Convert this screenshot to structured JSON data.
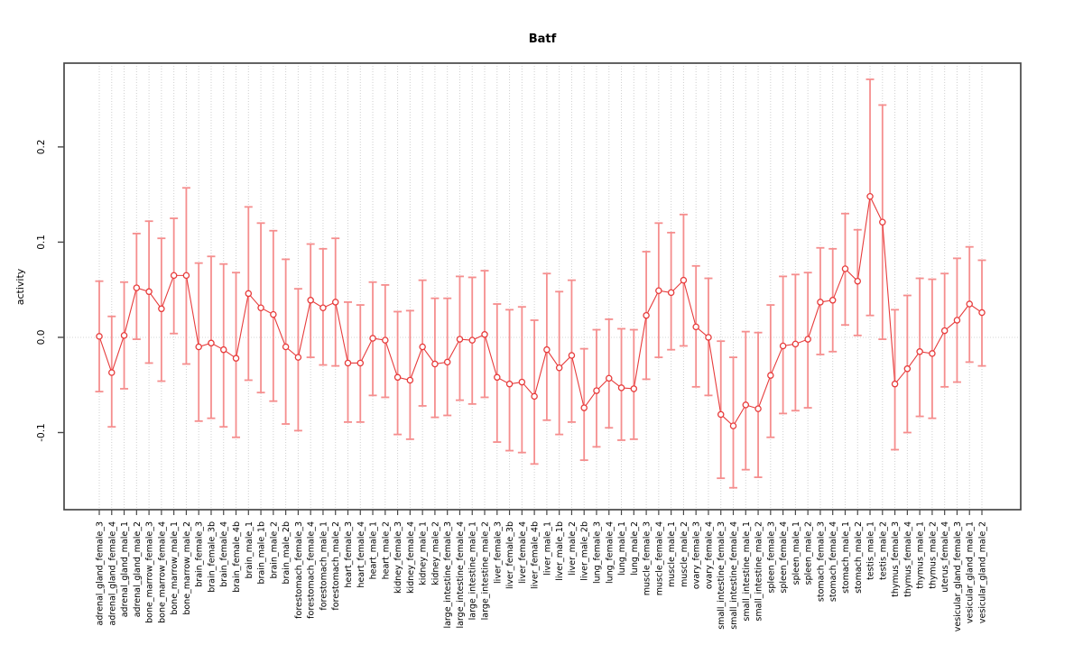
{
  "chart_data": {
    "type": "scatter",
    "subtype": "point-estimates-with-confidence-intervals",
    "title": "Batf",
    "xlabel": "",
    "ylabel": "activity",
    "legend": null,
    "grid": "vertical dotted line per category; dotted horizontal line at 0",
    "ylim": [
      -0.181,
      0.288
    ],
    "yticks": [
      -0.1,
      0.0,
      0.1,
      0.2
    ],
    "ytick_labels": [
      "-0.1",
      "0.0",
      "0.1",
      "0.2"
    ],
    "categories": [
      "adrenal_gland_female_3",
      "adrenal_gland_female_4",
      "adrenal_gland_male_1",
      "adrenal_gland_male_2",
      "bone_marrow_female_3",
      "bone_marrow_female_4",
      "bone_marrow_male_1",
      "bone_marrow_male_2",
      "brain_female_3",
      "brain_female_3b",
      "brain_female_4",
      "brain_female_4b",
      "brain_male_1",
      "brain_male_1b",
      "brain_male_2",
      "brain_male_2b",
      "forestomach_female_3",
      "forestomach_female_4",
      "forestomach_male_1",
      "forestomach_male_2",
      "heart_female_3",
      "heart_female_4",
      "heart_male_1",
      "heart_male_2",
      "kidney_female_3",
      "kidney_female_4",
      "kidney_male_1",
      "kidney_male_2",
      "large_intestine_female_3",
      "large_intestine_female_4",
      "large_intestine_male_1",
      "large_intestine_male_2",
      "liver_female_3",
      "liver_female_3b",
      "liver_female_4",
      "liver_female_4b",
      "liver_male_1",
      "liver_male_1b",
      "liver_male_2",
      "liver_male_2b",
      "lung_female_3",
      "lung_female_4",
      "lung_male_1",
      "lung_male_2",
      "muscle_female_3",
      "muscle_female_4",
      "muscle_male_1",
      "muscle_male_2",
      "ovary_female_3",
      "ovary_female_4",
      "small_intestine_female_3",
      "small_intestine_female_4",
      "small_intestine_male_1",
      "small_intestine_male_2",
      "spleen_female_3",
      "spleen_female_4",
      "spleen_male_1",
      "spleen_male_2",
      "stomach_female_3",
      "stomach_female_4",
      "stomach_male_1",
      "stomach_male_2",
      "testis_male_1",
      "testis_male_2",
      "thymus_female_3",
      "thymus_female_4",
      "thymus_male_1",
      "thymus_male_2",
      "uterus_female_4",
      "vesicular_gland_female_3",
      "vesicular_gland_male_1",
      "vesicular_gland_male_2"
    ],
    "series": [
      {
        "name": "activity",
        "values": [
          0.001,
          -0.037,
          0.002,
          0.052,
          0.048,
          0.03,
          0.065,
          0.065,
          -0.01,
          -0.006,
          -0.013,
          -0.022,
          0.046,
          0.031,
          0.024,
          -0.01,
          -0.021,
          0.039,
          0.031,
          0.037,
          -0.027,
          -0.027,
          -0.001,
          -0.003,
          -0.042,
          -0.045,
          -0.01,
          -0.028,
          -0.026,
          -0.002,
          -0.003,
          0.003,
          -0.042,
          -0.049,
          -0.047,
          -0.062,
          -0.013,
          -0.032,
          -0.019,
          -0.074,
          -0.056,
          -0.043,
          -0.053,
          -0.054,
          0.023,
          0.049,
          0.047,
          0.06,
          0.011,
          0.0,
          -0.081,
          -0.093,
          -0.071,
          -0.075,
          -0.04,
          -0.009,
          -0.007,
          -0.002,
          0.037,
          0.039,
          0.072,
          0.059,
          0.148,
          0.121,
          -0.049,
          -0.033,
          -0.015,
          -0.017,
          0.007,
          0.018,
          0.035,
          0.026
        ],
        "ci_low": [
          -0.057,
          -0.094,
          -0.054,
          -0.002,
          -0.027,
          -0.046,
          0.004,
          -0.028,
          -0.088,
          -0.085,
          -0.094,
          -0.105,
          -0.045,
          -0.058,
          -0.067,
          -0.091,
          -0.098,
          -0.021,
          -0.029,
          -0.03,
          -0.089,
          -0.089,
          -0.061,
          -0.063,
          -0.102,
          -0.107,
          -0.072,
          -0.084,
          -0.082,
          -0.066,
          -0.07,
          -0.063,
          -0.11,
          -0.119,
          -0.121,
          -0.133,
          -0.087,
          -0.102,
          -0.089,
          -0.129,
          -0.115,
          -0.095,
          -0.108,
          -0.107,
          -0.044,
          -0.021,
          -0.013,
          -0.009,
          -0.052,
          -0.061,
          -0.148,
          -0.158,
          -0.139,
          -0.147,
          -0.105,
          -0.08,
          -0.077,
          -0.074,
          -0.018,
          -0.015,
          0.013,
          0.002,
          0.023,
          -0.002,
          -0.118,
          -0.1,
          -0.083,
          -0.085,
          -0.052,
          -0.047,
          -0.026,
          -0.03
        ],
        "ci_high": [
          0.059,
          0.022,
          0.058,
          0.109,
          0.122,
          0.104,
          0.125,
          0.157,
          0.078,
          0.085,
          0.077,
          0.068,
          0.137,
          0.12,
          0.112,
          0.082,
          0.051,
          0.098,
          0.093,
          0.104,
          0.037,
          0.034,
          0.058,
          0.055,
          0.027,
          0.028,
          0.06,
          0.041,
          0.041,
          0.064,
          0.063,
          0.07,
          0.035,
          0.029,
          0.032,
          0.018,
          0.067,
          0.048,
          0.06,
          -0.012,
          0.008,
          0.019,
          0.009,
          0.008,
          0.09,
          0.12,
          0.11,
          0.129,
          0.075,
          0.062,
          -0.004,
          -0.021,
          0.006,
          0.005,
          0.034,
          0.064,
          0.066,
          0.068,
          0.094,
          0.093,
          0.13,
          0.113,
          0.271,
          0.244,
          0.029,
          0.044,
          0.062,
          0.061,
          0.067,
          0.083,
          0.095,
          0.081
        ]
      }
    ]
  },
  "colors": {
    "point_line_red": "#e73c3c",
    "error_bar_salmon": "#f58e8e",
    "gridline_gray": "#cfcfcf",
    "zero_line_gray": "#d4d4d4",
    "axis_gray": "#484848",
    "background": "#ffffff",
    "text": "#000000"
  }
}
